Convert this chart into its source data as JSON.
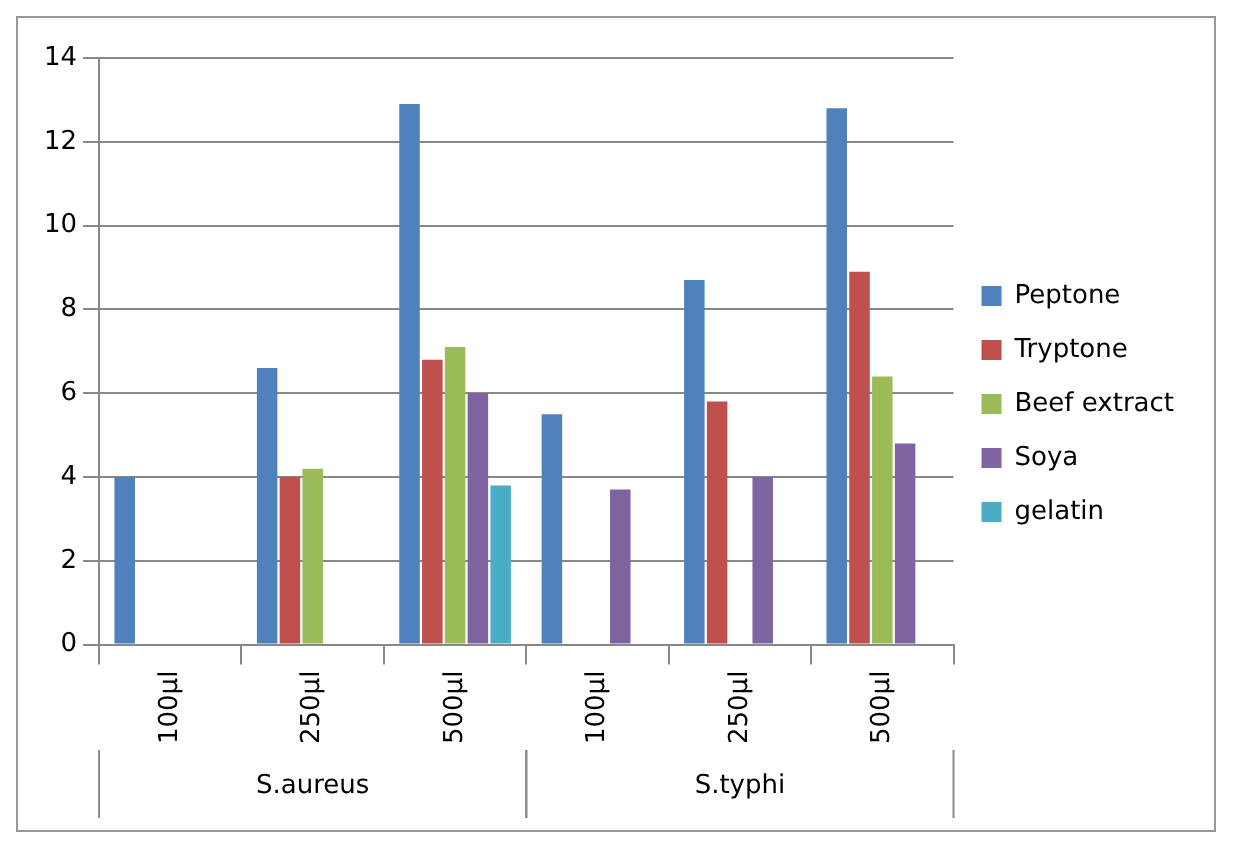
{
  "chart_data": {
    "type": "bar",
    "categories": [
      "100µl",
      "250µl",
      "500µl",
      "100µl",
      "250µl",
      "500µl"
    ],
    "annotations": [
      "S.aureus",
      "S.typhi"
    ],
    "series": [
      {
        "name": "Peptone",
        "color": "#4f81bd",
        "values": [
          4,
          6.6,
          12.9,
          5.5,
          8.7,
          12.8
        ]
      },
      {
        "name": "Tryptone",
        "color": "#c0504d",
        "values": [
          null,
          4.0,
          6.8,
          null,
          5.8,
          8.9
        ]
      },
      {
        "name": "Beef extract",
        "color": "#9bbb59",
        "values": [
          null,
          4.2,
          7.1,
          null,
          null,
          6.4
        ]
      },
      {
        "name": "Soya",
        "color": "#8064a2",
        "values": [
          null,
          null,
          6.0,
          3.7,
          4.0,
          4.8
        ]
      },
      {
        "name": "gelatin",
        "color": "#4bacc6",
        "values": [
          null,
          null,
          3.8,
          null,
          null,
          null
        ]
      }
    ],
    "ylim": [
      0,
      14
    ],
    "yticks": [
      0,
      2,
      4,
      6,
      8,
      10,
      12,
      14
    ],
    "grid": "y",
    "legend": "right"
  }
}
